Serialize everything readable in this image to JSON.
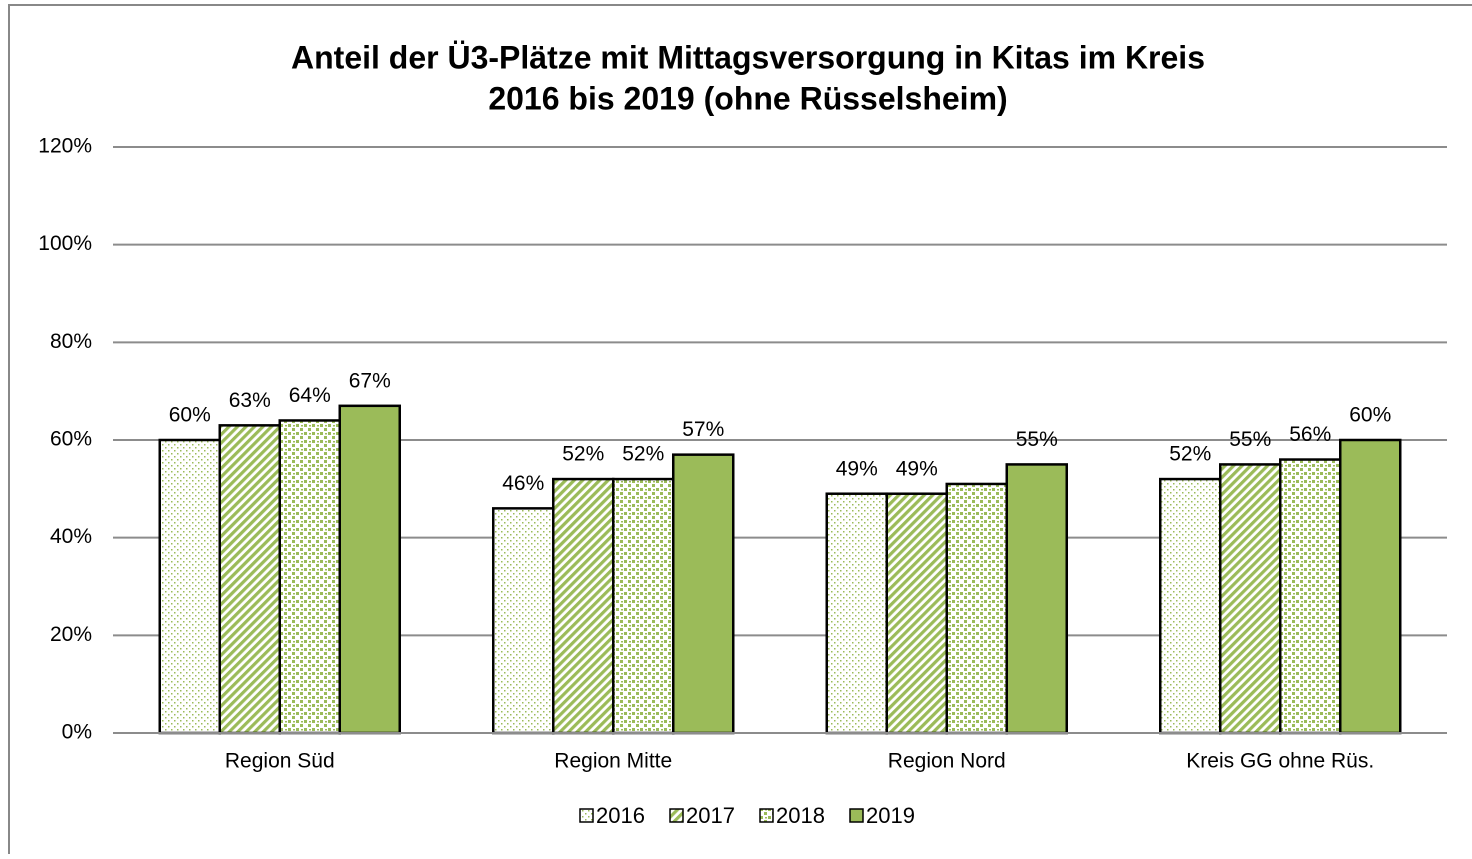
{
  "chart_data": {
    "type": "bar",
    "title": "Anteil der Ü3-Plätze mit Mittagsversorgung in Kitas im Kreis",
    "subtitle": "2016 bis 2019 (ohne Rüsselsheim)",
    "categories": [
      "Region Süd",
      "Region Mitte",
      "Region Nord",
      "Kreis GG ohne Rüs."
    ],
    "series": [
      {
        "name": "2016",
        "color": "#9bbb59",
        "values": [
          60,
          46,
          49,
          52
        ],
        "value_labels": [
          "60%",
          "46%",
          "49%",
          "52%"
        ]
      },
      {
        "name": "2017",
        "color": "#9bbb59",
        "values": [
          63,
          52,
          49,
          55
        ],
        "value_labels": [
          "63%",
          "52%",
          "49%",
          "55%"
        ]
      },
      {
        "name": "2018",
        "color": "#9bbb59",
        "values": [
          64,
          52,
          51,
          56
        ],
        "value_labels": [
          "64%",
          "52%",
          null,
          "56%"
        ]
      },
      {
        "name": "2019",
        "color": "#9bbb59",
        "values": [
          67,
          57,
          55,
          60
        ],
        "value_labels": [
          "67%",
          "57%",
          "55%",
          "60%"
        ]
      }
    ],
    "ylim": [
      0,
      120
    ],
    "yticks": [
      {
        "value": 0,
        "label": "0%"
      },
      {
        "value": 20,
        "label": "20%"
      },
      {
        "value": 40,
        "label": "40%"
      },
      {
        "value": 60,
        "label": "60%"
      },
      {
        "value": 80,
        "label": "80%"
      },
      {
        "value": 100,
        "label": "100%"
      },
      {
        "value": 120,
        "label": "120%"
      }
    ],
    "grid": true,
    "legend": "bottom"
  }
}
